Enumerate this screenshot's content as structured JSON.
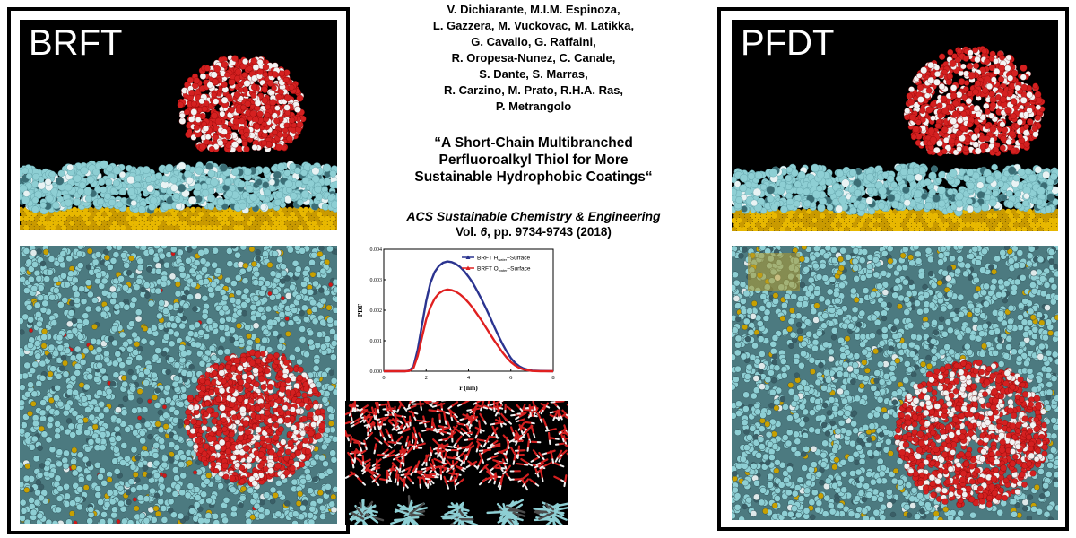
{
  "left_panel": {
    "label": "BRFT"
  },
  "right_panel": {
    "label": "PFDT"
  },
  "authors": [
    "V. Dichiarante, M.I.M. Espinoza,",
    "L. Gazzera, M. Vuckovac, M. Latikka,",
    "G. Cavallo, G. Raffaini,",
    "R. Oropesa-Nunez, C. Canale,",
    "S. Dante, S. Marras,",
    "R. Carzino, M. Prato, R.H.A. Ras,",
    "P. Metrangolo"
  ],
  "title": [
    "“A Short-Chain Multibranched",
    "Perfluoroalkyl Thiol for More",
    "Sustainable Hydrophobic Coatings“"
  ],
  "journal": "ACS Sustainable Chemistry & Engineering",
  "volume": {
    "prefix": "Vol. ",
    "number": "6",
    "suffix": ", pp. 9734-9743 (2018)"
  },
  "colors": {
    "water_red": "#d42020",
    "fluorine_cyan": "#8ecfd4",
    "gold": "#e4b400",
    "sulfur": "#c8a000",
    "carbon": "#3a5e66"
  },
  "chart_data": {
    "type": "line",
    "xlabel": "r (nm)",
    "ylabel": "PDF",
    "xlim": [
      0,
      8
    ],
    "ylim": [
      0,
      0.004
    ],
    "x_ticks": [
      "0",
      "2",
      "4",
      "6",
      "8"
    ],
    "y_ticks": [
      "0.000",
      "0.001",
      "0.002",
      "0.003",
      "0.004"
    ],
    "legend_position": "top-right",
    "series": [
      {
        "name_main": "BRFT H",
        "name_sub": "water",
        "name_suffix": "–Surface",
        "color": "#2b3490",
        "x": [
          0,
          1,
          1.2,
          1.4,
          1.6,
          1.8,
          2,
          2.2,
          2.4,
          2.6,
          2.8,
          3,
          3.2,
          3.4,
          3.6,
          3.8,
          4,
          4.2,
          4.4,
          4.6,
          4.8,
          5,
          5.2,
          5.4,
          5.6,
          5.8,
          6,
          6.2,
          6.4,
          6.6,
          6.8,
          7,
          7.4,
          8
        ],
        "y": [
          0,
          0,
          2e-05,
          0.00015,
          0.0007,
          0.0015,
          0.0023,
          0.0029,
          0.00325,
          0.00345,
          0.00356,
          0.0036,
          0.00358,
          0.00352,
          0.00342,
          0.00328,
          0.0031,
          0.0029,
          0.00265,
          0.00238,
          0.0021,
          0.0018,
          0.00148,
          0.00118,
          0.0009,
          0.00065,
          0.00043,
          0.00027,
          0.00016,
          9e-05,
          5e-05,
          2e-05,
          1e-05,
          0
        ]
      },
      {
        "name_main": "BRFT O",
        "name_sub": "water",
        "name_suffix": "–Surface",
        "color": "#e02020",
        "x": [
          0,
          1,
          1.2,
          1.4,
          1.6,
          1.8,
          2,
          2.2,
          2.4,
          2.6,
          2.8,
          3,
          3.2,
          3.4,
          3.6,
          3.8,
          4,
          4.2,
          4.4,
          4.6,
          4.8,
          5,
          5.2,
          5.4,
          5.6,
          5.8,
          6,
          6.2,
          6.4,
          6.6,
          6.8,
          7,
          7.4,
          8
        ],
        "y": [
          0,
          0,
          1e-05,
          0.0001,
          0.0005,
          0.0011,
          0.0017,
          0.0021,
          0.00238,
          0.00255,
          0.00264,
          0.00268,
          0.00266,
          0.00261,
          0.00252,
          0.0024,
          0.00225,
          0.00208,
          0.00188,
          0.00168,
          0.00146,
          0.00124,
          0.00102,
          0.00082,
          0.00062,
          0.00045,
          0.0003,
          0.00019,
          0.00011,
          6e-05,
          3e-05,
          1e-05,
          0,
          0
        ]
      }
    ]
  }
}
